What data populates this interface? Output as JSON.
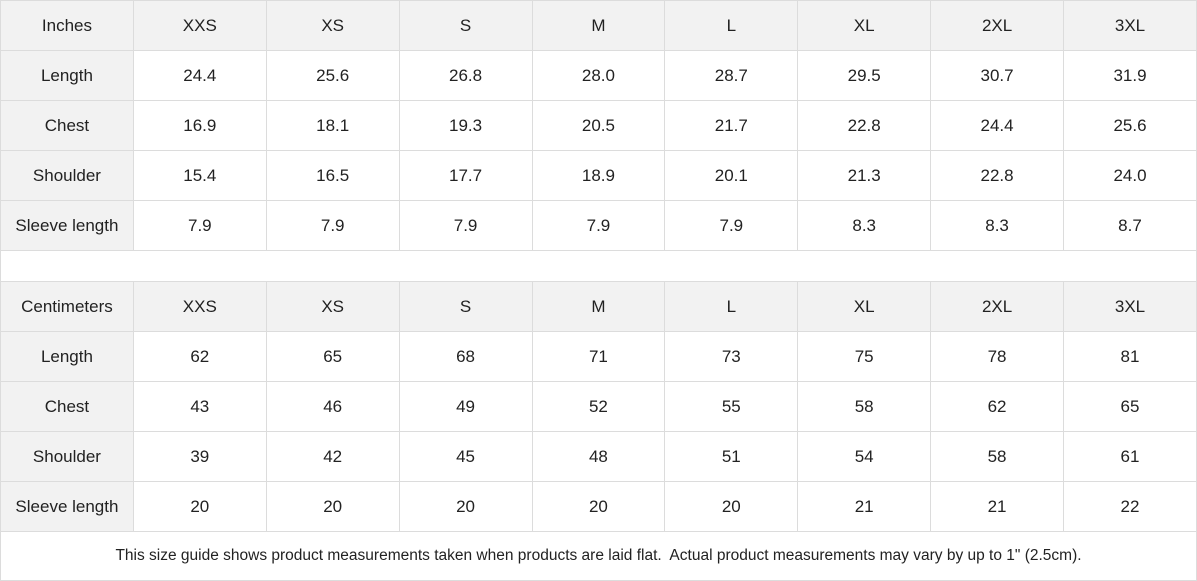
{
  "inches": {
    "header": [
      "Inches",
      "XXS",
      "XS",
      "S",
      "M",
      "L",
      "XL",
      "2XL",
      "3XL"
    ],
    "rows": [
      [
        "Length",
        "24.4",
        "25.6",
        "26.8",
        "28.0",
        "28.7",
        "29.5",
        "30.7",
        "31.9"
      ],
      [
        "Chest",
        "16.9",
        "18.1",
        "19.3",
        "20.5",
        "21.7",
        "22.8",
        "24.4",
        "25.6"
      ],
      [
        "Shoulder",
        "15.4",
        "16.5",
        "17.7",
        "18.9",
        "20.1",
        "21.3",
        "22.8",
        "24.0"
      ],
      [
        "Sleeve length",
        "7.9",
        "7.9",
        "7.9",
        "7.9",
        "7.9",
        "8.3",
        "8.3",
        "8.7"
      ]
    ]
  },
  "centimeters": {
    "header": [
      "Centimeters",
      "XXS",
      "XS",
      "S",
      "M",
      "L",
      "XL",
      "2XL",
      "3XL"
    ],
    "rows": [
      [
        "Length",
        "62",
        "65",
        "68",
        "71",
        "73",
        "75",
        "78",
        "81"
      ],
      [
        "Chest",
        "43",
        "46",
        "49",
        "52",
        "55",
        "58",
        "62",
        "65"
      ],
      [
        "Shoulder",
        "39",
        "42",
        "45",
        "48",
        "51",
        "54",
        "58",
        "61"
      ],
      [
        "Sleeve length",
        "20",
        "20",
        "20",
        "20",
        "20",
        "21",
        "21",
        "22"
      ]
    ]
  },
  "note": "This size guide shows product measurements taken when products are laid flat.  Actual product measurements may vary by up to 1\" (2.5cm)."
}
